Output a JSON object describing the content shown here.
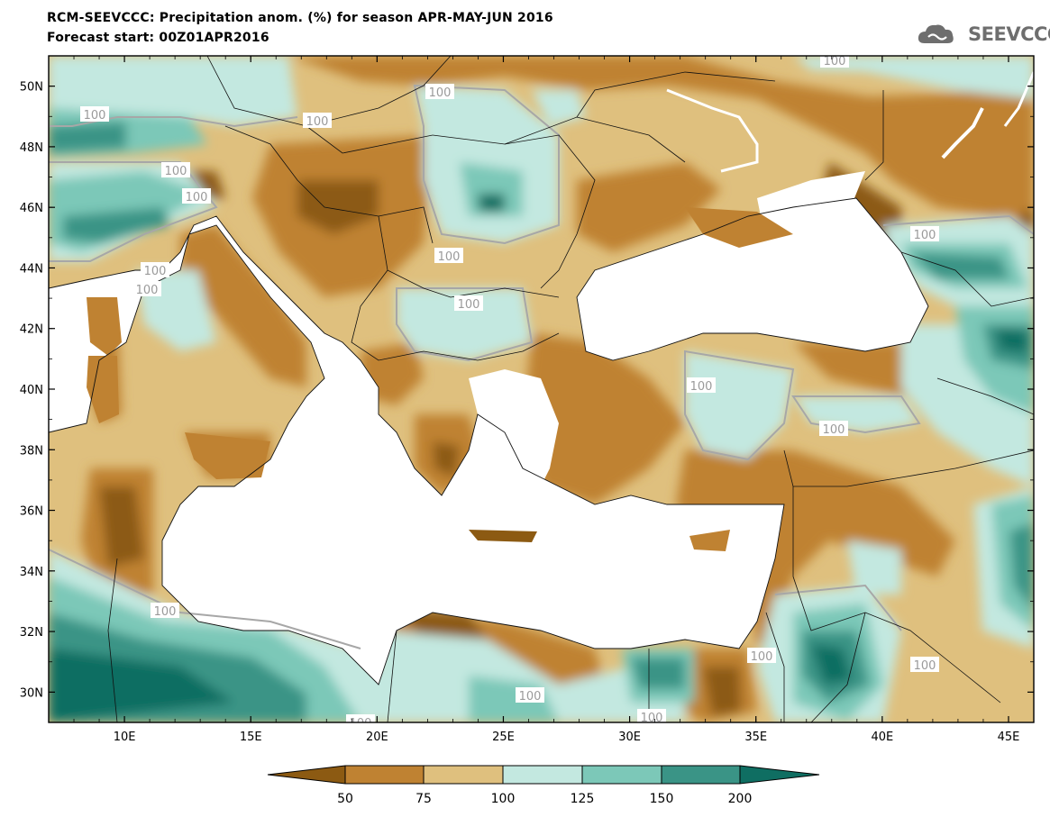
{
  "title_line1": "RCM-SEEVCCC: Precipitation anom. (%) for season APR-MAY-JUN 2016",
  "title_line2": "Forecast start: 00Z01APR2016",
  "logo_text": "SEEVCCC",
  "logo_icon": "cloud-icon",
  "axes": {
    "lon_range": [
      7,
      46
    ],
    "lat_range": [
      29,
      51
    ],
    "lat_ticks": [
      "50N",
      "48N",
      "46N",
      "44N",
      "42N",
      "40N",
      "38N",
      "36N",
      "34N",
      "32N",
      "30N"
    ],
    "lon_ticks": [
      "10E",
      "15E",
      "20E",
      "25E",
      "30E",
      "35E",
      "40E",
      "45E"
    ]
  },
  "contour_labels": [
    "100",
    "100",
    "100",
    "100",
    "100",
    "100",
    "100",
    "100",
    "100",
    "100",
    "100",
    "100",
    "100",
    "100",
    "100",
    "100",
    "100",
    "100",
    "100"
  ],
  "colorbar": {
    "tick_labels": [
      "50",
      "75",
      "100",
      "125",
      "150",
      "200"
    ],
    "colors": [
      "#8c5a12",
      "#bf8232",
      "#dfc07e",
      "#c3e8e0",
      "#7cc8b8",
      "#3a9486",
      "#0f6e62"
    ]
  },
  "palette": {
    "dark_brown": "#8c5a12",
    "brown": "#bf8232",
    "tan": "#dfc07e",
    "light_teal": "#c3e8e0",
    "teal": "#7cc8b8",
    "dark_teal": "#3a9486",
    "darkest_teal": "#0f6e62",
    "contour_100": "#a7a7a7",
    "sea": "#ffffff"
  }
}
